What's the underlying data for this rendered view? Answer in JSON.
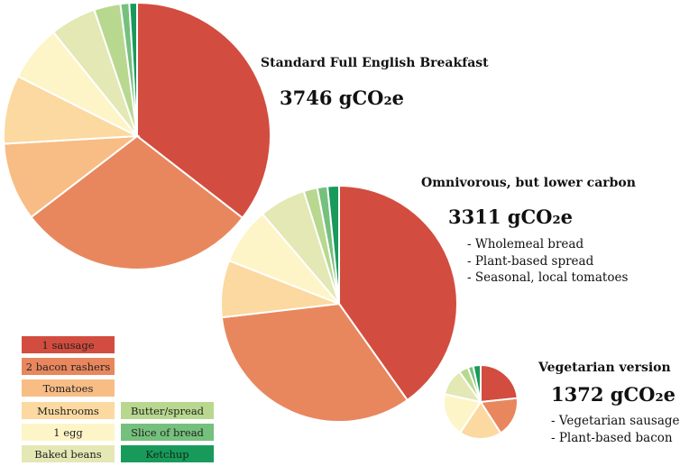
{
  "legend": {
    "items": [
      {
        "label": "1 sausage",
        "color": "#d24d3f"
      },
      {
        "label": "2 bacon rashers",
        "color": "#e8875e"
      },
      {
        "label": "Tomatoes",
        "color": "#f7bd85"
      },
      {
        "label": "Mushrooms",
        "color": "#fbd9a0"
      },
      {
        "label": "1 egg",
        "color": "#fdf5c7"
      },
      {
        "label": "Baked beans",
        "color": "#e3e8b4"
      },
      {
        "label": "Butter/spread",
        "color": "#b8d88f"
      },
      {
        "label": "Slice of bread",
        "color": "#76c07d"
      },
      {
        "label": "Ketchup",
        "color": "#189a5b"
      }
    ]
  },
  "breakfasts": [
    {
      "title": "Standard Full English Breakfast",
      "total": "3746 gCO₂e",
      "notes": []
    },
    {
      "title": "Omnivorous, but lower carbon",
      "total": "3311 gCO₂e",
      "notes": [
        "- Wholemeal bread",
        "- Plant-based spread",
        "- Seasonal, local tomatoes"
      ]
    },
    {
      "title": "Vegetarian version",
      "total": "1372 gCO₂e",
      "notes": [
        "- Vegetarian sausages",
        "- Plant-based bacon"
      ]
    }
  ],
  "chart_data": [
    {
      "type": "pie",
      "title": "Standard Full English Breakfast",
      "total": 3746,
      "unit": "gCO₂e",
      "categories": [
        "1 sausage",
        "2 bacon rashers",
        "Tomatoes",
        "Mushrooms",
        "1 egg",
        "Baked beans",
        "Butter/spread",
        "Slice of bread",
        "Ketchup"
      ],
      "values": [
        1330,
        1090,
        355,
        312,
        255,
        209,
        120,
        40,
        35
      ]
    },
    {
      "type": "pie",
      "title": "Omnivorous, but lower carbon",
      "total": 3311,
      "unit": "gCO₂e",
      "categories": [
        "1 sausage",
        "2 bacon rashers",
        "Tomatoes",
        "Mushrooms",
        "1 egg",
        "Baked beans",
        "Butter/spread",
        "Slice of bread",
        "Ketchup"
      ],
      "values": [
        1331,
        1091,
        0,
        258,
        259,
        212,
        62,
        46,
        52
      ]
    },
    {
      "type": "pie",
      "title": "Vegetarian version",
      "total": 1372,
      "unit": "gCO₂e",
      "categories": [
        "1 sausage",
        "2 bacon rashers",
        "Tomatoes",
        "Mushrooms",
        "1 egg",
        "Baked beans",
        "Butter/spread",
        "Slice of bread",
        "Ketchup"
      ],
      "values": [
        320,
        241,
        0,
        254,
        261,
        162,
        57,
        32,
        45
      ]
    }
  ]
}
